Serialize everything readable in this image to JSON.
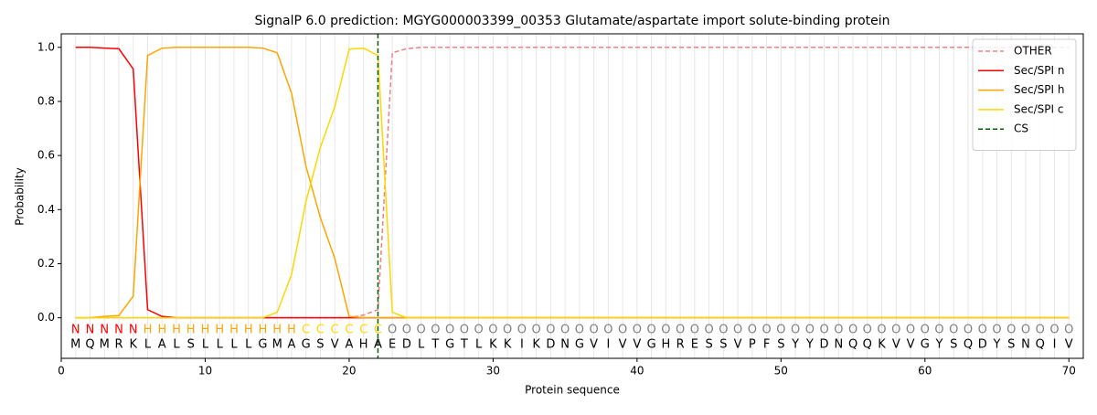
{
  "chart_data": {
    "type": "line",
    "title": "SignalP 6.0 prediction: MGYG000003399_00353 Glutamate/aspartate import solute-binding protein",
    "xlabel": "Protein sequence",
    "ylabel": "Probability",
    "xlim": [
      0,
      71
    ],
    "ylim": [
      -0.15,
      1.05
    ],
    "xticks": [
      0,
      10,
      20,
      30,
      40,
      50,
      60,
      70
    ],
    "yticks": [
      {
        "value": 0,
        "label": "0.0"
      },
      0.2,
      0.4,
      0.6,
      0.8,
      {
        "value": 1,
        "label": "1.0"
      }
    ],
    "vgrid": true,
    "legend": "upper right",
    "x": [
      1,
      2,
      3,
      4,
      5,
      6,
      7,
      8,
      9,
      10,
      11,
      12,
      13,
      14,
      15,
      16,
      17,
      18,
      19,
      20,
      21,
      22,
      23,
      24,
      25,
      26,
      27,
      28,
      29,
      30,
      31,
      32,
      33,
      34,
      35,
      36,
      37,
      38,
      39,
      40,
      41,
      42,
      43,
      44,
      45,
      46,
      47,
      48,
      49,
      50,
      51,
      52,
      53,
      54,
      55,
      56,
      57,
      58,
      59,
      60,
      61,
      62,
      63,
      64,
      65,
      66,
      67,
      68,
      69,
      70
    ],
    "residues": [
      "M",
      "Q",
      "M",
      "R",
      "K",
      "L",
      "A",
      "L",
      "S",
      "L",
      "L",
      "L",
      "L",
      "G",
      "M",
      "A",
      "G",
      "S",
      "V",
      "A",
      "H",
      "A",
      "E",
      "D",
      "L",
      "T",
      "G",
      "T",
      "L",
      "K",
      "K",
      "I",
      "K",
      "D",
      "N",
      "G",
      "V",
      "I",
      "V",
      "V",
      "G",
      "H",
      "R",
      "E",
      "S",
      "S",
      "V",
      "P",
      "F",
      "S",
      "Y",
      "Y",
      "D",
      "N",
      "Q",
      "Q",
      "K",
      "V",
      "V",
      "G",
      "Y",
      "S",
      "Q",
      "D",
      "Y",
      "S",
      "N",
      "Q",
      "I",
      "V"
    ],
    "region_labels": [
      "N",
      "N",
      "N",
      "N",
      "N",
      "H",
      "H",
      "H",
      "H",
      "H",
      "H",
      "H",
      "H",
      "H",
      "H",
      "H",
      "C",
      "C",
      "C",
      "C",
      "C",
      "C",
      "O",
      "O",
      "O",
      "O",
      "O",
      "O",
      "O",
      "O",
      "O",
      "O",
      "O",
      "O",
      "O",
      "O",
      "O",
      "O",
      "O",
      "O",
      "O",
      "O",
      "O",
      "O",
      "O",
      "O",
      "O",
      "O",
      "O",
      "O",
      "O",
      "O",
      "O",
      "O",
      "O",
      "O",
      "O",
      "O",
      "O",
      "O",
      "O",
      "O",
      "O",
      "O",
      "O",
      "O",
      "O",
      "O",
      "O",
      "O"
    ],
    "region_colors": {
      "N": "#ff0000",
      "H": "#ffa500",
      "C": "#ffd700",
      "O": "#808080"
    },
    "series": [
      {
        "name": "OTHER",
        "color": "#f08080",
        "dash": true,
        "values": [
          0,
          0,
          0,
          0,
          0,
          0,
          0,
          0,
          0,
          0,
          0,
          0,
          0,
          0,
          0,
          0,
          0,
          0,
          0,
          0,
          0.01,
          0.03,
          0.98,
          0.995,
          1,
          1,
          1,
          1,
          1,
          1,
          1,
          1,
          1,
          1,
          1,
          1,
          1,
          1,
          1,
          1,
          1,
          1,
          1,
          1,
          1,
          1,
          1,
          1,
          1,
          1,
          1,
          1,
          1,
          1,
          1,
          1,
          1,
          1,
          1,
          1,
          1,
          1,
          1,
          1,
          1,
          1,
          1,
          1,
          1,
          1
        ]
      },
      {
        "name": "Sec/SPI n",
        "color": "#ff0000",
        "dash": false,
        "values": [
          1,
          1,
          0.997,
          0.995,
          0.92,
          0.03,
          0.005,
          0,
          0,
          0,
          0,
          0,
          0,
          0,
          0,
          0,
          0,
          0,
          0,
          0,
          0,
          0,
          0,
          0,
          0,
          0,
          0,
          0,
          0,
          0,
          0,
          0,
          0,
          0,
          0,
          0,
          0,
          0,
          0,
          0,
          0,
          0,
          0,
          0,
          0,
          0,
          0,
          0,
          0,
          0,
          0,
          0,
          0,
          0,
          0,
          0,
          0,
          0,
          0,
          0,
          0,
          0,
          0,
          0,
          0,
          0,
          0,
          0,
          0,
          0
        ]
      },
      {
        "name": "Sec/SPI h",
        "color": "#ffa500",
        "dash": false,
        "values": [
          0,
          0,
          0.005,
          0.008,
          0.08,
          0.97,
          0.997,
          1,
          1,
          1,
          1,
          1,
          1,
          0.997,
          0.98,
          0.83,
          0.56,
          0.37,
          0.22,
          0.005,
          0,
          0,
          0,
          0,
          0,
          0,
          0,
          0,
          0,
          0,
          0,
          0,
          0,
          0,
          0,
          0,
          0,
          0,
          0,
          0,
          0,
          0,
          0,
          0,
          0,
          0,
          0,
          0,
          0,
          0,
          0,
          0,
          0,
          0,
          0,
          0,
          0,
          0,
          0,
          0,
          0,
          0,
          0,
          0,
          0,
          0,
          0,
          0,
          0,
          0
        ]
      },
      {
        "name": "Sec/SPI c",
        "color": "#ffd700",
        "dash": false,
        "values": [
          0,
          0,
          0,
          0,
          0,
          0,
          0,
          0,
          0,
          0,
          0,
          0,
          0,
          0,
          0.02,
          0.16,
          0.43,
          0.63,
          0.78,
          0.993,
          0.997,
          0.97,
          0.02,
          0,
          0,
          0,
          0,
          0,
          0,
          0,
          0,
          0,
          0,
          0,
          0,
          0,
          0,
          0,
          0,
          0,
          0,
          0,
          0,
          0,
          0,
          0,
          0,
          0,
          0,
          0,
          0,
          0,
          0,
          0,
          0,
          0,
          0,
          0,
          0,
          0,
          0,
          0,
          0,
          0,
          0,
          0,
          0,
          0,
          0,
          0
        ]
      }
    ],
    "cs": {
      "name": "CS",
      "x": 22,
      "color": "#006400"
    }
  }
}
